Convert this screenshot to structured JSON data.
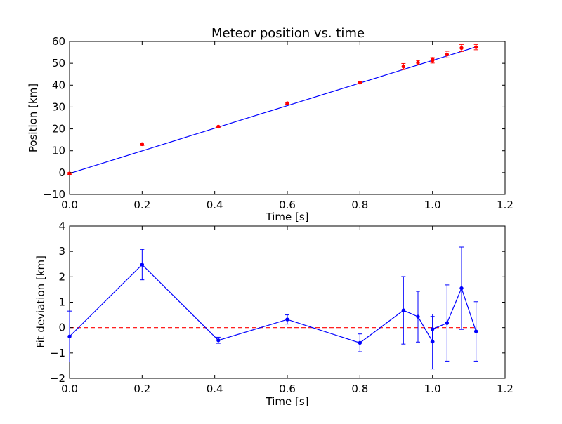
{
  "chart_data": [
    {
      "type": "scatter",
      "title": "Meteor position vs. time",
      "xlabel": "Time [s]",
      "ylabel": "Position [km]",
      "xlim": [
        0,
        1.2
      ],
      "ylim": [
        -10,
        60
      ],
      "xticks": [
        "0.0",
        "0.2",
        "0.4",
        "0.6",
        "0.8",
        "1.0",
        "1.2"
      ],
      "xtick_values": [
        0,
        0.2,
        0.4,
        0.6,
        0.8,
        1.0,
        1.2
      ],
      "yticks": [
        "−10",
        "0",
        "10",
        "20",
        "30",
        "40",
        "50",
        "60"
      ],
      "ytick_values": [
        -10,
        0,
        10,
        20,
        30,
        40,
        50,
        60
      ],
      "grid": false,
      "series": [
        {
          "kind": "errorbar-points",
          "color": "#ff0000",
          "points": [
            {
              "x": 0.0,
              "y": -0.4,
              "err": 0.4
            },
            {
              "x": 0.2,
              "y": 13.0,
              "err": 0.6
            },
            {
              "x": 0.41,
              "y": 21.0,
              "err": 0.3
            },
            {
              "x": 0.6,
              "y": 31.7,
              "err": 0.4
            },
            {
              "x": 0.8,
              "y": 41.2,
              "err": 0.4
            },
            {
              "x": 0.92,
              "y": 48.5,
              "err": 1.4
            },
            {
              "x": 0.96,
              "y": 50.3,
              "err": 1.0
            },
            {
              "x": 1.0,
              "y": 51.3,
              "err": 1.2
            },
            {
              "x": 1.0,
              "y": 52.0,
              "err": 0.6
            },
            {
              "x": 1.04,
              "y": 54.0,
              "err": 1.5
            },
            {
              "x": 1.08,
              "y": 57.0,
              "err": 1.6
            },
            {
              "x": 1.12,
              "y": 57.4,
              "err": 1.2
            }
          ]
        },
        {
          "kind": "fit-line",
          "color": "#0000ff",
          "x": [
            0.0,
            1.12
          ],
          "y": [
            -0.4,
            57.5
          ]
        }
      ]
    },
    {
      "type": "line",
      "title": "",
      "xlabel": "Time [s]",
      "ylabel": "Fit deviation [km]",
      "xlim": [
        0,
        1.2
      ],
      "ylim": [
        -2,
        4
      ],
      "xticks": [
        "0.0",
        "0.2",
        "0.4",
        "0.6",
        "0.8",
        "1.0",
        "1.2"
      ],
      "xtick_values": [
        0,
        0.2,
        0.4,
        0.6,
        0.8,
        1.0,
        1.2
      ],
      "yticks": [
        "−2",
        "−1",
        "0",
        "1",
        "2",
        "3",
        "4"
      ],
      "ytick_values": [
        -2,
        -1,
        0,
        1,
        2,
        3,
        4
      ],
      "grid": false,
      "series": [
        {
          "kind": "errorbar-line",
          "color": "#0000ff",
          "points": [
            {
              "x": 0.0,
              "y": -0.35,
              "err": 1.0
            },
            {
              "x": 0.2,
              "y": 2.48,
              "err": 0.6
            },
            {
              "x": 0.41,
              "y": -0.5,
              "err": 0.12
            },
            {
              "x": 0.6,
              "y": 0.32,
              "err": 0.18
            },
            {
              "x": 0.8,
              "y": -0.6,
              "err": 0.35
            },
            {
              "x": 0.92,
              "y": 0.68,
              "err": 1.33
            },
            {
              "x": 0.96,
              "y": 0.43,
              "err": 1.0
            },
            {
              "x": 1.0,
              "y": -0.55,
              "err": 1.08
            },
            {
              "x": 1.0,
              "y": -0.06,
              "err": 0.5
            },
            {
              "x": 1.04,
              "y": 0.18,
              "err": 1.5
            },
            {
              "x": 1.08,
              "y": 1.55,
              "err": 1.62
            },
            {
              "x": 1.12,
              "y": -0.15,
              "err": 1.17
            }
          ]
        },
        {
          "kind": "reference-line",
          "color": "#ff0000",
          "dashed": true,
          "x": [
            0.0,
            1.12
          ],
          "y": [
            0,
            0
          ]
        }
      ]
    }
  ]
}
